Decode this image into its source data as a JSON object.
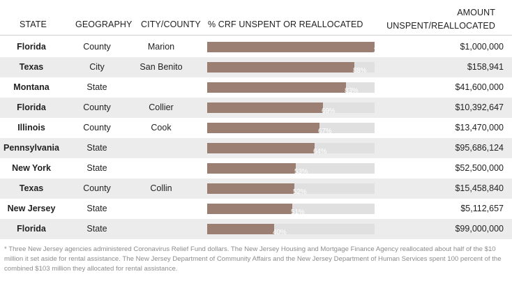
{
  "chart_data": {
    "type": "table",
    "columns": {
      "state": "STATE",
      "geography": "GEOGRAPHY",
      "city_county": "CITY/COUNTY",
      "pct": "% CRF UNSPENT OR REALLOCATED",
      "amount": "AMOUNT\nUNSPENT/REALLOCATED"
    },
    "rows": [
      {
        "state": "Florida",
        "geography": "County",
        "city_county": "Marion",
        "pct": 100,
        "pct_label": "100%",
        "amount": "$1,000,000"
      },
      {
        "state": "Texas",
        "geography": "City",
        "city_county": "San Benito",
        "pct": 88,
        "pct_label": "88%",
        "amount": "$158,941"
      },
      {
        "state": "Montana",
        "geography": "State",
        "city_county": "",
        "pct": 83,
        "pct_label": "83%",
        "amount": "$41,600,000"
      },
      {
        "state": "Florida",
        "geography": "County",
        "city_county": "Collier",
        "pct": 69,
        "pct_label": "69%",
        "amount": "$10,392,647"
      },
      {
        "state": "Illinois",
        "geography": "County",
        "city_county": "Cook",
        "pct": 67,
        "pct_label": "67%",
        "amount": "$13,470,000"
      },
      {
        "state": "Pennsylvania",
        "geography": "State",
        "city_county": "",
        "pct": 64,
        "pct_label": "64%",
        "amount": "$95,686,124"
      },
      {
        "state": "New York",
        "geography": "State",
        "city_county": "",
        "pct": 53,
        "pct_label": "53%",
        "amount": "$52,500,000"
      },
      {
        "state": "Texas",
        "geography": "County",
        "city_county": "Collin",
        "pct": 52,
        "pct_label": "52%",
        "amount": "$15,458,840"
      },
      {
        "state": "New Jersey",
        "geography": "State",
        "city_county": "",
        "pct": 51,
        "pct_label": "51%",
        "amount": "$5,112,657"
      },
      {
        "state": "Florida",
        "geography": "State",
        "city_county": "",
        "pct": 40,
        "pct_label": "40%",
        "amount": "$99,000,000"
      }
    ],
    "footnote": "* Three New Jersey agencies administered Coronavirus Relief Fund dollars. The New Jersey Housing and Mortgage Finance Agency reallocated about half of the $10 million it set aside for rental assistance. The New Jersey Department of Community Affairs and the New Jersey Department of Human Services spent 100 percent of the combined $103 million they allocated for rental assistance.",
    "bar_color": "#9a7f72",
    "track_color": "#e0e0e0",
    "alt_row_color": "#ececec"
  }
}
